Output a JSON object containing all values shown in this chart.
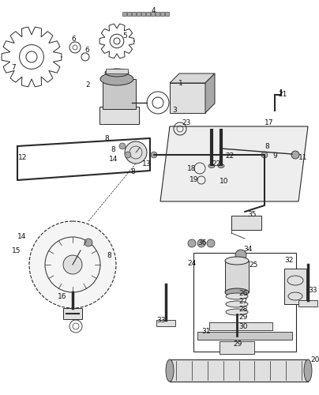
{
  "bg_color": "#ffffff",
  "line_color": "#2a2a2a",
  "fig_width": 4.04,
  "fig_height": 5.0,
  "dpi": 100
}
